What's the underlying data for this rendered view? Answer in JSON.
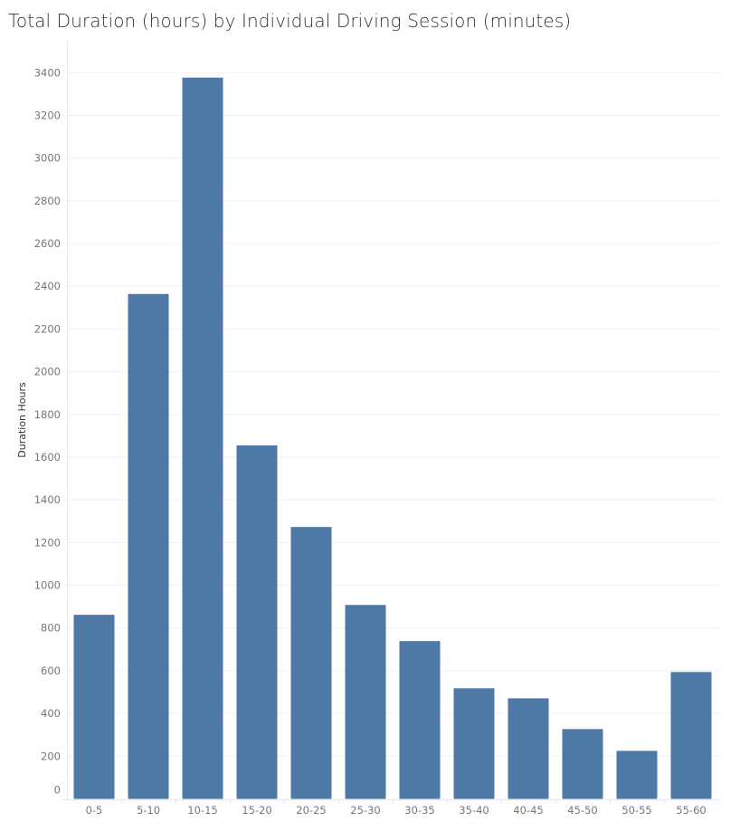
{
  "chart_data": {
    "type": "bar",
    "title": "Total Duration (hours) by Individual Driving Session (minutes)",
    "xlabel": "",
    "ylabel": "Duration Hours",
    "categories": [
      "0-5",
      "5-10",
      "10-15",
      "15-20",
      "20-25",
      "25-30",
      "30-35",
      "35-40",
      "40-45",
      "45-50",
      "50-55",
      "55-60"
    ],
    "values": [
      862,
      2364,
      3377,
      1655,
      1273,
      908,
      739,
      518,
      471,
      327,
      225,
      594
    ],
    "ylim": [
      0,
      3400
    ],
    "yticks": [
      0,
      200,
      400,
      600,
      800,
      1000,
      1200,
      1400,
      1600,
      1800,
      2000,
      2200,
      2400,
      2600,
      2800,
      3000,
      3200,
      3400
    ],
    "grid": true,
    "bar_color": "#4e79a7"
  }
}
